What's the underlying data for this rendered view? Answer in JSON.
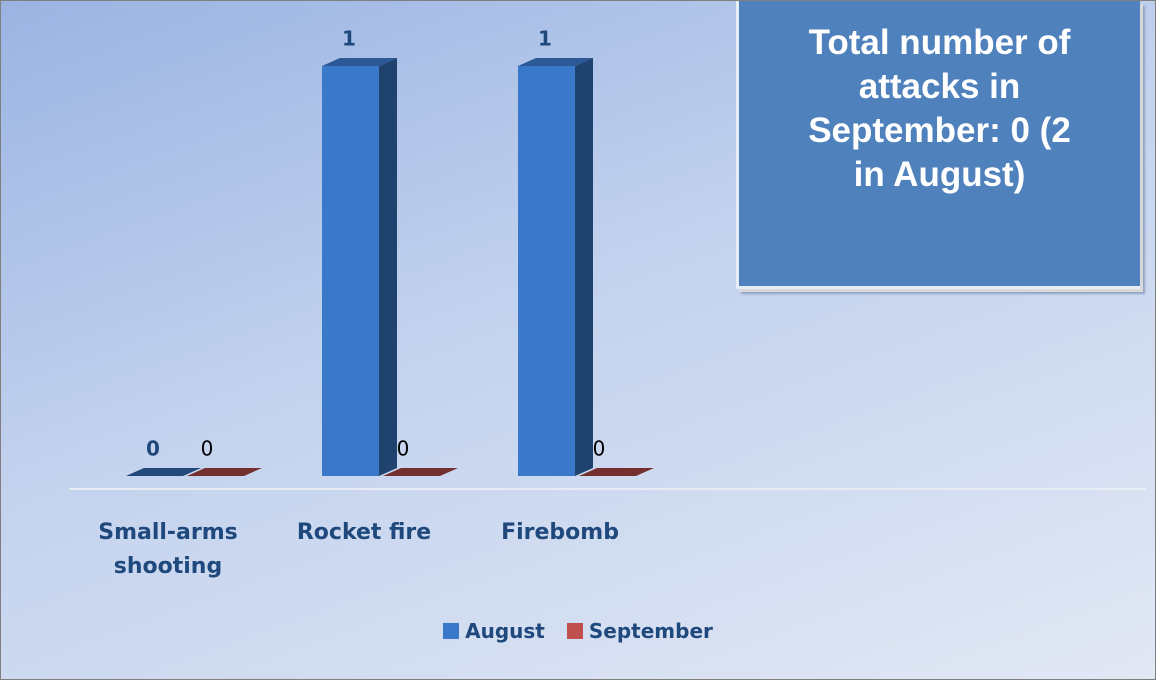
{
  "chart_data": {
    "type": "bar3d",
    "categories": [
      "Small-arms shooting",
      "Rocket fire",
      "Firebomb"
    ],
    "series": [
      {
        "name": "August",
        "color": "#3a78c9",
        "values": [
          0,
          1,
          1
        ]
      },
      {
        "name": "September",
        "color": "#c0504d",
        "values": [
          0,
          0,
          0
        ]
      }
    ],
    "annotation": "Total number of attacks in September: 0 (2 in August)"
  }
}
